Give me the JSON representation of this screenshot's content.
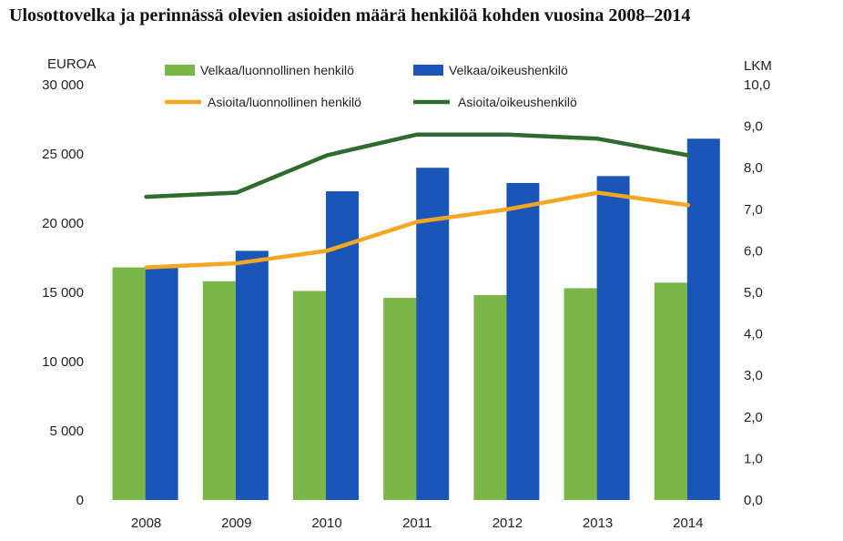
{
  "chart_data": {
    "type": "bar",
    "title": "Ulosottovelka ja perinnässä olevien asioiden määrä henkilöä kohden vuosina 2008–2014",
    "y_left_label": "EUROA",
    "y_right_label": "LKM",
    "categories": [
      "2008",
      "2009",
      "2010",
      "2011",
      "2012",
      "2013",
      "2014"
    ],
    "y_left_ticks": [
      "0",
      "5 000",
      "10 000",
      "15 000",
      "20 000",
      "25 000",
      "30 000"
    ],
    "y_right_ticks": [
      "0,0",
      "1,0",
      "2,0",
      "3,0",
      "4,0",
      "5,0",
      "6,0",
      "7,0",
      "8,0",
      "9,0",
      "10,0"
    ],
    "ylim_left": [
      0,
      30000
    ],
    "ylim_right": [
      0,
      10
    ],
    "series": [
      {
        "name": "Velkaa/luonnollinen henkilö",
        "kind": "bar",
        "axis": "left",
        "color": "#7ab648",
        "values": [
          16800,
          15800,
          15100,
          14600,
          14800,
          15300,
          15700
        ]
      },
      {
        "name": "Velkaa/oikeushenkilö",
        "kind": "bar",
        "axis": "left",
        "color": "#1a56b8",
        "values": [
          16800,
          18000,
          22300,
          24000,
          22900,
          23400,
          26100
        ]
      },
      {
        "name": "Asioita/luonnollinen henkilö",
        "kind": "line",
        "axis": "right",
        "color": "#f5a623",
        "values": [
          5.6,
          5.7,
          6.0,
          6.7,
          7.0,
          7.4,
          7.1
        ]
      },
      {
        "name": "Asioita/oikeushenkilö",
        "kind": "line",
        "axis": "right",
        "color": "#2e6b2e",
        "values": [
          7.3,
          7.4,
          8.3,
          8.8,
          8.8,
          8.7,
          8.3
        ]
      }
    ],
    "grid": false,
    "legend_position": "top"
  }
}
